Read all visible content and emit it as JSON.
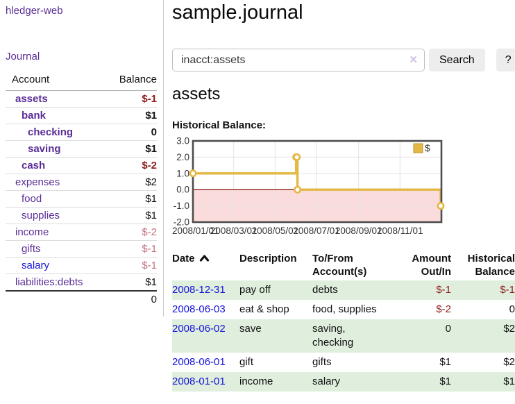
{
  "palette": {
    "link_purple": "#5a2d96",
    "link_blue": "#1515d8",
    "negative_strong": "#8e1b1b",
    "negative_light": "#c4737f",
    "row_green": "#dfeedd"
  },
  "sidebar": {
    "brand": "hledger-web",
    "journal_link": "Journal",
    "accounts": {
      "headers": [
        "Account",
        "Balance"
      ],
      "rows": [
        {
          "account": "assets",
          "balance": "$-1"
        },
        {
          "account": "bank",
          "balance": "$1"
        },
        {
          "account": "checking",
          "balance": "0"
        },
        {
          "account": "saving",
          "balance": "$1"
        },
        {
          "account": "cash",
          "balance": "$-2"
        },
        {
          "account": "expenses",
          "balance": "$2"
        },
        {
          "account": "food",
          "balance": "$1"
        },
        {
          "account": "supplies",
          "balance": "$1"
        },
        {
          "account": "income",
          "balance": "$-2"
        },
        {
          "account": "gifts",
          "balance": "$-1"
        },
        {
          "account": "salary",
          "balance": "$-1"
        },
        {
          "account": "liabilities:debts",
          "balance": "$1"
        }
      ],
      "total": "0"
    }
  },
  "header": {
    "title": "sample.journal"
  },
  "search": {
    "value": "inacct:assets",
    "clear_icon": "✕",
    "search_button": "Search",
    "help_button": "?"
  },
  "account_view": {
    "title": "assets",
    "chart_title": "Historical Balance:"
  },
  "chart_data": {
    "type": "line",
    "step": true,
    "title": "Historical Balance of assets",
    "legend_position": "top-right",
    "grid": true,
    "xrange": [
      "2008-01-01",
      "2009-01-01"
    ],
    "ylim": [
      -2,
      3
    ],
    "series": [
      {
        "name": "$",
        "points": [
          {
            "date": "2008-01-01",
            "value": 1
          },
          {
            "date": "2008-06-01",
            "value": 2
          },
          {
            "date": "2008-06-02",
            "value": 2
          },
          {
            "date": "2008-06-03",
            "value": 0
          },
          {
            "date": "2008-12-31",
            "value": -1
          }
        ]
      }
    ],
    "yticks": [
      {
        "v": 3,
        "label": "3.0"
      },
      {
        "v": 2,
        "label": "2.0"
      },
      {
        "v": 1,
        "label": "1.0"
      },
      {
        "v": 0,
        "label": "0.0"
      },
      {
        "v": -1,
        "label": "-1.0"
      },
      {
        "v": -2,
        "label": "-2.0"
      }
    ],
    "xticks": [
      {
        "date": "2008-01-01",
        "label": "2008/01/01"
      },
      {
        "date": "2008-03-01",
        "label": "2008/03/01"
      },
      {
        "date": "2008-05-01",
        "label": "2008/05/01"
      },
      {
        "date": "2008-07-01",
        "label": "2008/07/01"
      },
      {
        "date": "2008-09-01",
        "label": "2008/09/01"
      },
      {
        "date": "2008-11-01",
        "label": "2008/11/01"
      }
    ],
    "colors": {
      "line": "#e3b844",
      "legend_border": "#bd982e",
      "negative_area": "#fbdcdc",
      "zero_line": "#8e1f1f",
      "grid": "#e3e3e3",
      "border": "#4d4d4d"
    }
  },
  "register": {
    "headers": {
      "date": "Date",
      "description": "Description",
      "tofrom": "To/From Account(s)",
      "amount": "Amount Out/In",
      "historical": "Historical Balance"
    },
    "rows": [
      {
        "date": "2008-12-31",
        "description": "pay off",
        "accounts": "debts",
        "amount": "$-1",
        "balance": "$-1"
      },
      {
        "date": "2008-06-03",
        "description": "eat & shop",
        "accounts": "food, supplies",
        "amount": "$-2",
        "balance": "0"
      },
      {
        "date": "2008-06-02",
        "description": "save",
        "accounts": "saving, checking",
        "amount": "0",
        "balance": "$2"
      },
      {
        "date": "2008-06-01",
        "description": "gift",
        "accounts": "gifts",
        "amount": "$1",
        "balance": "$2"
      },
      {
        "date": "2008-01-01",
        "description": "income",
        "accounts": "salary",
        "amount": "$1",
        "balance": "$1"
      }
    ]
  }
}
